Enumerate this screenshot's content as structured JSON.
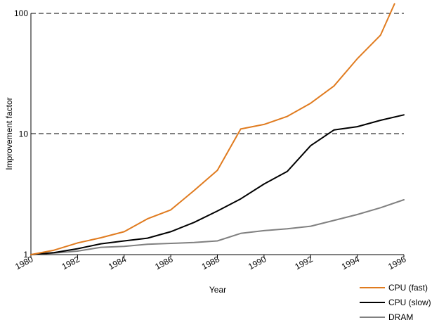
{
  "chart_data": {
    "type": "line",
    "title": "",
    "xlabel": "Year",
    "ylabel": "Improvement factor",
    "yscale": "log",
    "ylim": [
      1,
      100
    ],
    "xlim": [
      1980,
      1996
    ],
    "grid": "dashed horizontal lines at 10 and 100",
    "legend_position": "bottom-right",
    "x_tick_labels": [
      "1980",
      "1982",
      "1984",
      "1986",
      "1988",
      "1990",
      "1992",
      "1994",
      "1996"
    ],
    "y_tick_labels": [
      "1",
      "10",
      "100"
    ],
    "x": [
      1980,
      1981,
      1982,
      1983,
      1984,
      1985,
      1986,
      1987,
      1988,
      1989,
      1990,
      1991,
      1992,
      1993,
      1994,
      1995,
      1996
    ],
    "series": [
      {
        "name": "CPU (fast)",
        "color": "#e07b1f",
        "x": [
          1980,
          1981,
          1982,
          1983,
          1984,
          1985,
          1986,
          1987,
          1988,
          1989,
          1990,
          1991,
          1992,
          1993,
          1994,
          1995,
          1995.6
        ],
        "values": [
          1.0,
          1.09,
          1.25,
          1.38,
          1.55,
          1.98,
          2.35,
          3.4,
          5.0,
          11.0,
          12.0,
          14.0,
          18.0,
          25.0,
          42.0,
          66.0,
          120.0
        ]
      },
      {
        "name": "CPU (slow)",
        "color": "#000000",
        "x": [
          1980,
          1981,
          1982,
          1983,
          1984,
          1985,
          1986,
          1987,
          1988,
          1989,
          1990,
          1991,
          1992,
          1993,
          1994,
          1995,
          1996
        ],
        "values": [
          1.0,
          1.04,
          1.12,
          1.23,
          1.3,
          1.37,
          1.55,
          1.85,
          2.3,
          2.9,
          3.85,
          4.9,
          8.0,
          10.8,
          11.5,
          13.0,
          14.4
        ]
      },
      {
        "name": "DRAM",
        "color": "#808080",
        "x": [
          1980,
          1981,
          1982,
          1983,
          1984,
          1985,
          1986,
          1987,
          1988,
          1989,
          1990,
          1991,
          1992,
          1993,
          1994,
          1995,
          1996
        ],
        "values": [
          1.0,
          1.03,
          1.07,
          1.15,
          1.17,
          1.22,
          1.24,
          1.26,
          1.3,
          1.5,
          1.58,
          1.64,
          1.72,
          1.92,
          2.15,
          2.45,
          2.85
        ]
      }
    ]
  }
}
